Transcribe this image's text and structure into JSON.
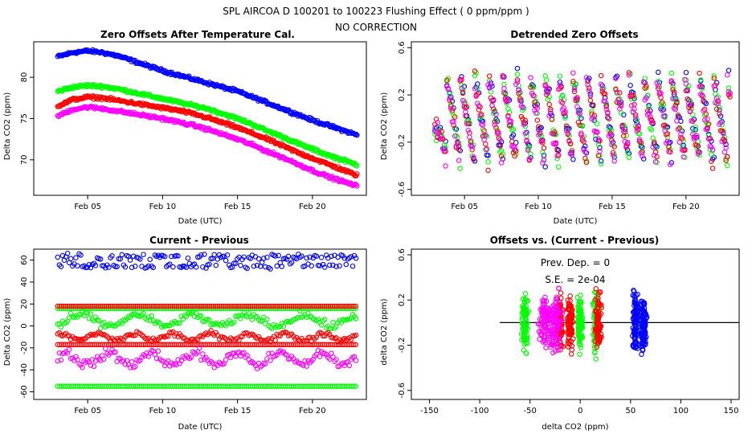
{
  "suptitle": "SPL   AIRCOA D   100201 to 100223   Flushing Effect ( 0 ppm/ppm )",
  "subtitle": "NO CORRECTION",
  "colors": {
    "blue": "#0000ff",
    "green": "#00ff00",
    "red": "#ff0000",
    "magenta": "#ff00ff"
  },
  "chart_data": [
    {
      "type": "scatter",
      "title": "Zero Offsets After Temperature Cal.",
      "xlabel": "Date (UTC)",
      "ylabel": "Delta CO2 (ppm)",
      "xticks": [
        "Feb 05",
        "Feb 10",
        "Feb 15",
        "Feb 20"
      ],
      "xtick_days": [
        5,
        10,
        15,
        20
      ],
      "yticks": [
        70,
        75,
        80
      ],
      "xlim": [
        1.4,
        23.6
      ],
      "ylim": [
        65.7,
        84.3
      ],
      "series": [
        {
          "color": "blue",
          "x": [
            3,
            4,
            5,
            6,
            7,
            8,
            9,
            10,
            11,
            12,
            13,
            14,
            15,
            16,
            17,
            18,
            19,
            20,
            21,
            22,
            23
          ],
          "y": [
            82.5,
            83.0,
            83.2,
            83.0,
            82.6,
            82.0,
            81.4,
            80.8,
            80.3,
            79.8,
            79.3,
            78.8,
            78.3,
            77.6,
            76.9,
            76.2,
            75.5,
            74.8,
            74.2,
            73.6,
            73.0
          ]
        },
        {
          "color": "green",
          "x": [
            3,
            4,
            5,
            6,
            7,
            8,
            9,
            10,
            11,
            12,
            13,
            14,
            15,
            16,
            17,
            18,
            19,
            20,
            21,
            22,
            23
          ],
          "y": [
            78.3,
            78.8,
            79.0,
            78.9,
            78.6,
            78.2,
            77.8,
            77.4,
            77.0,
            76.6,
            76.2,
            75.6,
            75.0,
            74.3,
            73.5,
            72.8,
            72.0,
            71.3,
            70.6,
            70.0,
            69.4
          ]
        },
        {
          "color": "red",
          "x": [
            3,
            4,
            5,
            6,
            7,
            8,
            9,
            10,
            11,
            12,
            13,
            14,
            15,
            16,
            17,
            18,
            19,
            20,
            21,
            22,
            23
          ],
          "y": [
            76.5,
            77.3,
            77.6,
            77.5,
            77.2,
            76.9,
            76.6,
            76.3,
            76.0,
            75.6,
            75.1,
            74.5,
            73.9,
            73.2,
            72.5,
            71.7,
            70.9,
            70.2,
            69.5,
            68.8,
            68.1
          ]
        },
        {
          "color": "magenta",
          "x": [
            3,
            4,
            5,
            6,
            7,
            8,
            9,
            10,
            11,
            12,
            13,
            14,
            15,
            16,
            17,
            18,
            19,
            20,
            21,
            22,
            23
          ],
          "y": [
            75.3,
            76.1,
            76.4,
            76.2,
            75.9,
            75.6,
            75.3,
            75.0,
            74.6,
            74.2,
            73.7,
            73.1,
            72.5,
            71.8,
            71.0,
            70.3,
            69.5,
            68.7,
            68.0,
            67.4,
            66.8
          ]
        }
      ]
    },
    {
      "type": "scatter",
      "title": "Detrended Zero Offsets",
      "xlabel": "Date (UTC)",
      "ylabel": "Delta CO2 (ppm)",
      "xticks": [
        "Feb 05",
        "Feb 10",
        "Feb 15",
        "Feb 20"
      ],
      "xtick_days": [
        5,
        10,
        15,
        20
      ],
      "yticks": [
        -0.6,
        -0.2,
        0.2,
        0.6
      ],
      "ytick_labels": [
        "-0.6",
        "-0.2",
        "0.2",
        "0.6"
      ],
      "xlim": [
        1.4,
        23.6
      ],
      "ylim": [
        -0.65,
        0.65
      ],
      "pattern": "sawtooth per day, amplitude ~0.35 ppm, all four series overlap",
      "series": [
        {
          "color": "blue"
        },
        {
          "color": "green"
        },
        {
          "color": "red"
        },
        {
          "color": "magenta"
        }
      ]
    },
    {
      "type": "scatter",
      "title": "Current - Previous",
      "xlabel": "Date (UTC)",
      "ylabel": "Delta CO2 (ppm)",
      "xticks": [
        "Feb 05",
        "Feb 10",
        "Feb 15",
        "Feb 20"
      ],
      "xtick_days": [
        5,
        10,
        15,
        20
      ],
      "yticks": [
        -60,
        -40,
        -20,
        0,
        20,
        40,
        60
      ],
      "xlim": [
        1.4,
        23.6
      ],
      "ylim": [
        -67,
        70
      ],
      "series": [
        {
          "color": "blue",
          "level": 55,
          "upper_band": 63
        },
        {
          "color": "green",
          "level": 5,
          "constant_lines": [
            16,
            -55
          ]
        },
        {
          "color": "red",
          "level": -10,
          "constant_lines": [
            18,
            -17
          ]
        },
        {
          "color": "magenta",
          "level": -30
        }
      ]
    },
    {
      "type": "scatter",
      "title": "Offsets vs. (Current - Previous)",
      "xlabel": "delta CO2 (ppm)",
      "ylabel": "delta CO2 (ppm)",
      "xticks": [
        -150,
        -100,
        -50,
        0,
        50,
        100,
        150
      ],
      "yticks": [
        -0.6,
        -0.2,
        0.2,
        0.6
      ],
      "ytick_labels": [
        "-0.6",
        "-0.2",
        "0.2",
        "0.6"
      ],
      "xlim": [
        -168,
        158
      ],
      "ylim": [
        -0.68,
        0.65
      ],
      "annotations": [
        "Prev. Dep. = 0",
        "S.E. = 2e-04"
      ],
      "fit_line": {
        "slope": 0,
        "intercept": 0
      },
      "series": [
        {
          "color": "green",
          "x_centers": [
            -55,
            0,
            16
          ]
        },
        {
          "color": "red",
          "x_centers": [
            -20,
            -10,
            18
          ]
        },
        {
          "color": "magenta",
          "x_centers": [
            -35,
            -25
          ]
        },
        {
          "color": "blue",
          "x_centers": [
            55,
            63
          ]
        }
      ]
    }
  ]
}
